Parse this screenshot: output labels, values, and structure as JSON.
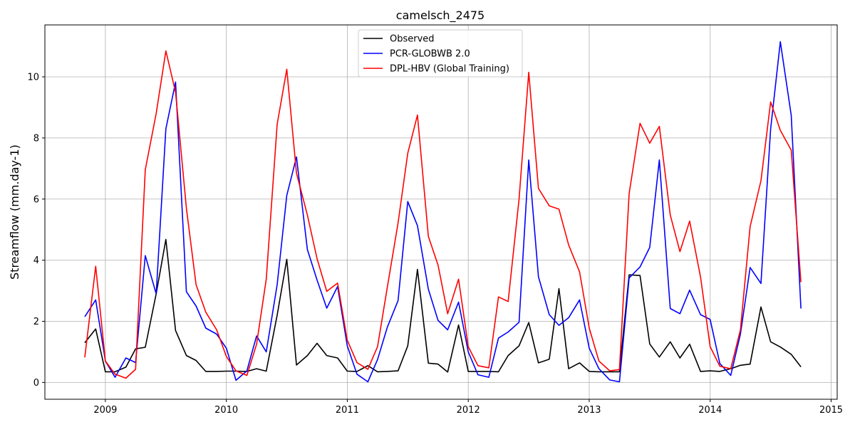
{
  "chart_data": {
    "type": "line",
    "title": "camelsch_2475",
    "xlabel": "",
    "ylabel": "Streamflow (mm.day-1)",
    "xlim": [
      2008.5,
      2015.05
    ],
    "ylim": [
      -0.55,
      11.7
    ],
    "xticks": [
      2009,
      2010,
      2011,
      2012,
      2013,
      2014,
      2015
    ],
    "xtick_labels": [
      "2009",
      "2010",
      "2011",
      "2012",
      "2013",
      "2014",
      "2015"
    ],
    "yticks": [
      0,
      2,
      4,
      6,
      8,
      10
    ],
    "ytick_labels": [
      "0",
      "2",
      "4",
      "6",
      "8",
      "10"
    ],
    "grid": true,
    "legend_position": "top-center",
    "x": [
      2008.83,
      2008.92,
      2009.0,
      2009.08,
      2009.17,
      2009.25,
      2009.33,
      2009.42,
      2009.5,
      2009.58,
      2009.67,
      2009.75,
      2009.83,
      2009.92,
      2010.0,
      2010.08,
      2010.17,
      2010.25,
      2010.33,
      2010.42,
      2010.5,
      2010.58,
      2010.67,
      2010.75,
      2010.83,
      2010.92,
      2011.0,
      2011.08,
      2011.17,
      2011.25,
      2011.33,
      2011.42,
      2011.5,
      2011.58,
      2011.67,
      2011.75,
      2011.83,
      2011.92,
      2012.0,
      2012.08,
      2012.17,
      2012.25,
      2012.33,
      2012.42,
      2012.5,
      2012.58,
      2012.67,
      2012.75,
      2012.83,
      2012.92,
      2013.0,
      2013.08,
      2013.17,
      2013.25,
      2013.33,
      2013.42,
      2013.5,
      2013.58,
      2013.67,
      2013.75,
      2013.83,
      2013.92,
      2014.0,
      2014.08,
      2014.17,
      2014.25,
      2014.33,
      2014.42,
      2014.5,
      2014.58,
      2014.67,
      2014.75
    ],
    "series": [
      {
        "name": "Observed",
        "color": "#000000",
        "values": [
          1.3,
          1.75,
          0.35,
          0.35,
          0.5,
          1.1,
          1.15,
          2.9,
          4.68,
          1.7,
          0.88,
          0.72,
          0.36,
          0.36,
          0.37,
          0.37,
          0.36,
          0.45,
          0.37,
          2.2,
          4.03,
          0.57,
          0.88,
          1.28,
          0.88,
          0.8,
          0.37,
          0.36,
          0.55,
          0.35,
          0.36,
          0.38,
          1.2,
          3.7,
          0.63,
          0.6,
          0.34,
          1.88,
          0.36,
          0.36,
          0.36,
          0.35,
          0.88,
          1.2,
          1.96,
          0.64,
          0.76,
          3.07,
          0.45,
          0.64,
          0.36,
          0.35,
          0.35,
          0.35,
          3.52,
          3.5,
          1.26,
          0.83,
          1.33,
          0.8,
          1.25,
          0.36,
          0.38,
          0.36,
          0.45,
          0.56,
          0.6,
          2.47,
          1.33,
          1.16,
          0.92,
          0.51
        ]
      },
      {
        "name": "PCR-GLOBWB 2.0",
        "color": "#0000ff",
        "values": [
          2.15,
          2.7,
          0.7,
          0.17,
          0.8,
          0.65,
          4.15,
          2.9,
          8.3,
          9.83,
          2.97,
          2.5,
          1.78,
          1.58,
          1.12,
          0.07,
          0.38,
          1.52,
          1.0,
          3.2,
          6.12,
          7.38,
          4.35,
          3.35,
          2.43,
          3.14,
          1.2,
          0.27,
          0.02,
          0.75,
          1.8,
          2.68,
          5.92,
          5.13,
          3.05,
          2.03,
          1.72,
          2.63,
          1.0,
          0.25,
          0.17,
          1.45,
          1.65,
          1.97,
          7.28,
          3.46,
          2.22,
          1.87,
          2.12,
          2.7,
          1.12,
          0.45,
          0.08,
          0.02,
          3.42,
          3.78,
          4.42,
          7.28,
          2.42,
          2.25,
          3.02,
          2.22,
          2.06,
          0.62,
          0.23,
          1.58,
          3.76,
          3.24,
          8.3,
          11.15,
          8.74,
          2.42
        ]
      },
      {
        "name": "DPL-HBV (Global Training)",
        "color": "#ff0000",
        "values": [
          0.82,
          3.8,
          0.7,
          0.27,
          0.14,
          0.43,
          6.96,
          8.8,
          10.85,
          9.5,
          5.7,
          3.2,
          2.3,
          1.72,
          0.85,
          0.38,
          0.23,
          1.25,
          3.38,
          8.45,
          10.25,
          6.85,
          5.48,
          4.05,
          2.98,
          3.25,
          1.38,
          0.65,
          0.43,
          1.17,
          3.1,
          5.22,
          7.5,
          8.75,
          4.78,
          3.84,
          2.25,
          3.38,
          1.17,
          0.55,
          0.48,
          2.8,
          2.65,
          6.0,
          10.15,
          6.35,
          5.78,
          5.67,
          4.5,
          3.62,
          1.78,
          0.7,
          0.38,
          0.42,
          6.18,
          8.48,
          7.83,
          8.38,
          5.48,
          4.28,
          5.28,
          3.45,
          1.17,
          0.53,
          0.45,
          1.72,
          5.1,
          6.6,
          9.18,
          8.25,
          7.6,
          3.28
        ]
      }
    ]
  }
}
